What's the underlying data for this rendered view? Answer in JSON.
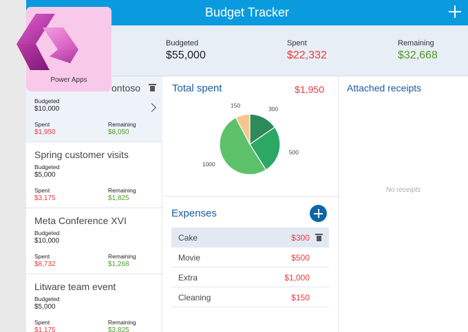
{
  "header": {
    "title": "Budget Tracker"
  },
  "summary": {
    "budgeted_label": "Budgeted",
    "budgeted_value": "$55,000",
    "spent_label": "Spent",
    "spent_value": "$22,332",
    "remaining_label": "Remaining",
    "remaining_value": "$32,668"
  },
  "logo": {
    "caption": "Power Apps"
  },
  "budgets": [
    {
      "name": "ontoso",
      "budgeted_label": "Budgeted",
      "budgeted": "$10,000",
      "spent_label": "Spent",
      "spent": "$1,950",
      "remaining_label": "Remaining",
      "remaining": "$8,050"
    },
    {
      "name": "Spring customer visits",
      "budgeted_label": "Budgeted",
      "budgeted": "$5,000",
      "spent_label": "Spent",
      "spent": "$3,175",
      "remaining_label": "Remaining",
      "remaining": "$1,825"
    },
    {
      "name": "Meta Conference XVI",
      "budgeted_label": "Budgeted",
      "budgeted": "$10,000",
      "spent_label": "Spent",
      "spent": "$8,732",
      "remaining_label": "Remaining",
      "remaining": "$1,268"
    },
    {
      "name": "Litware team event",
      "budgeted_label": "Budgeted",
      "budgeted": "$5,000",
      "spent_label": "Spent",
      "spent": "$1,175",
      "remaining_label": "Remaining",
      "remaining": "$3,825"
    }
  ],
  "total": {
    "title": "Total spent",
    "value": "$1,950"
  },
  "chart_data": {
    "type": "pie",
    "title": "",
    "categories": [
      "Cake",
      "Movie",
      "Extra",
      "Cleaning"
    ],
    "values": [
      300,
      500,
      1000,
      150
    ],
    "labels": [
      "300",
      "500",
      "1000",
      "150"
    ],
    "colors": [
      "#2e8a5a",
      "#2ba864",
      "#5dc16a",
      "#f6c58f"
    ]
  },
  "expenses": {
    "title": "Expenses",
    "rows": [
      {
        "name": "Cake",
        "amount": "$300"
      },
      {
        "name": "Movie",
        "amount": "$500"
      },
      {
        "name": "Extra",
        "amount": "$1,000"
      },
      {
        "name": "Cleaning",
        "amount": "$150"
      }
    ]
  },
  "receipts": {
    "title": "Attached receipts",
    "empty": "No receipts"
  }
}
